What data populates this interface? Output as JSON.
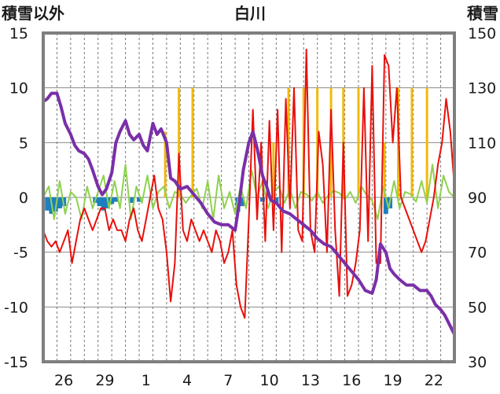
{
  "chart_data": {
    "type": "line",
    "title": "白川",
    "left_axis_label": "積雪以外",
    "right_axis_label": "積雪",
    "left_ylim": [
      -15,
      15
    ],
    "left_ticks": [
      15,
      10,
      5,
      0,
      -5,
      -10,
      -15
    ],
    "right_ylim": [
      30,
      150
    ],
    "right_ticks": [
      150,
      130,
      110,
      90,
      70,
      50,
      30
    ],
    "x_ticks": [
      "26",
      "29",
      "1",
      "4",
      "7",
      "10",
      "13",
      "16",
      "19",
      "22"
    ],
    "x_tick_positions": [
      1.5,
      4.5,
      7.5,
      10.5,
      13.5,
      16.5,
      19.5,
      22.5,
      25.5,
      28.5
    ],
    "x_range": [
      0,
      30
    ],
    "grid": {
      "horizontal": true,
      "vertical_dashed": true
    },
    "colors": {
      "temperature": "#e8100c",
      "snow_depth": "#7a2fa8",
      "temp_change": "#8fd14f",
      "snowfall": "#f2b90c",
      "negative_bar": "#1d7fbf",
      "frame": "#7f7f7f"
    },
    "series": [
      {
        "key": "snow_depth",
        "axis": "right",
        "x": [
          0.0,
          0.3,
          0.6,
          1.0,
          1.3,
          1.6,
          2.0,
          2.3,
          2.6,
          3.0,
          3.3,
          3.6,
          4.0,
          4.3,
          4.6,
          5.0,
          5.3,
          5.6,
          6.0,
          6.3,
          6.6,
          7.0,
          7.3,
          7.6,
          8.0,
          8.3,
          8.6,
          9.0,
          9.3,
          9.6,
          10.0,
          10.5,
          11.0,
          11.5,
          12.0,
          12.5,
          13.0,
          13.5,
          14.0,
          14.3,
          14.6,
          15.0,
          15.3,
          15.6,
          16.0,
          16.3,
          16.6,
          17.0,
          17.5,
          18.0,
          18.5,
          19.0,
          19.5,
          20.0,
          20.5,
          21.0,
          21.5,
          22.0,
          22.5,
          23.0,
          23.5,
          24.0,
          24.3,
          24.6,
          25.0,
          25.3,
          25.6,
          26.0,
          26.5,
          27.0,
          27.5,
          28.0,
          28.3,
          28.6,
          29.0,
          29.3,
          29.6,
          30.0
        ],
        "values": [
          125,
          126,
          128,
          128,
          123,
          117,
          113,
          109,
          107,
          106,
          104,
          100,
          94,
          91,
          93,
          99,
          110,
          114,
          118,
          113,
          111,
          113,
          109,
          107,
          117,
          113,
          115,
          110,
          97,
          96,
          93,
          94,
          91,
          88,
          84,
          81,
          80,
          80,
          78,
          88,
          100,
          110,
          114,
          108,
          98,
          94,
          89,
          88,
          85,
          84,
          82,
          80,
          78,
          75,
          73,
          72,
          69,
          66,
          63,
          60,
          56,
          55,
          60,
          73,
          70,
          64,
          62,
          60,
          58,
          58,
          56,
          56,
          54,
          51,
          49,
          47,
          44,
          40
        ],
        "axis_note": "snow depth in cm, right axis"
      },
      {
        "key": "temperature",
        "axis": "left",
        "x": [
          0.0,
          0.3,
          0.6,
          0.9,
          1.2,
          1.5,
          1.8,
          2.1,
          2.4,
          2.7,
          3.0,
          3.3,
          3.6,
          3.9,
          4.2,
          4.5,
          4.8,
          5.1,
          5.4,
          5.7,
          6.0,
          6.3,
          6.6,
          6.9,
          7.2,
          7.5,
          7.8,
          8.1,
          8.4,
          8.7,
          9.0,
          9.3,
          9.6,
          9.9,
          10.2,
          10.5,
          10.8,
          11.1,
          11.4,
          11.7,
          12.0,
          12.3,
          12.6,
          12.9,
          13.2,
          13.5,
          13.8,
          14.1,
          14.4,
          14.7,
          15.0,
          15.3,
          15.6,
          15.9,
          16.2,
          16.5,
          16.8,
          17.1,
          17.4,
          17.7,
          18.0,
          18.3,
          18.6,
          18.9,
          19.2,
          19.5,
          19.8,
          20.1,
          20.4,
          20.7,
          21.0,
          21.3,
          21.6,
          21.9,
          22.2,
          22.5,
          22.8,
          23.1,
          23.4,
          23.7,
          24.0,
          24.3,
          24.6,
          24.9,
          25.2,
          25.5,
          25.8,
          26.1,
          26.4,
          26.7,
          27.0,
          27.3,
          27.6,
          27.9,
          28.2,
          28.5,
          28.8,
          29.1,
          29.4,
          29.7,
          30.0
        ],
        "values": [
          -3,
          -4,
          -4.5,
          -4,
          -5,
          -4,
          -3,
          -6,
          -4,
          -2,
          -1,
          -2,
          -3,
          -2,
          -1,
          -1,
          -3,
          -2,
          -3,
          -3,
          -4,
          -2,
          -1,
          -3,
          -4,
          -2,
          0,
          2,
          -1,
          -2,
          -5,
          -9.5,
          -6,
          4,
          -3,
          -4,
          -2,
          -3,
          -4,
          -3,
          -4,
          -5,
          -3,
          -4,
          -6,
          -5,
          -3,
          -8,
          -10,
          -11,
          -2,
          8,
          -2,
          5,
          -4,
          7,
          -3,
          8,
          -5,
          9,
          -1,
          10,
          -3,
          -4,
          13.5,
          -3,
          -5,
          6,
          3,
          -5,
          8,
          -3,
          -9,
          5,
          -9,
          -8,
          -6,
          -3,
          10,
          -4,
          12,
          -6,
          -6,
          13,
          12,
          5,
          10,
          0,
          -1,
          -2,
          -3,
          -4,
          -5,
          -4,
          -2,
          0,
          3,
          5,
          9,
          6,
          1
        ]
      },
      {
        "key": "temp_change",
        "axis": "left",
        "x": [
          0.0,
          0.4,
          0.8,
          1.2,
          1.6,
          2.0,
          2.4,
          2.8,
          3.2,
          3.6,
          4.0,
          4.4,
          4.8,
          5.2,
          5.6,
          6.0,
          6.4,
          6.8,
          7.2,
          7.6,
          8.0,
          8.4,
          8.8,
          9.2,
          9.6,
          10.0,
          10.4,
          10.8,
          11.2,
          11.6,
          12.0,
          12.4,
          12.8,
          13.2,
          13.6,
          14.0,
          14.4,
          14.8,
          15.2,
          15.6,
          16.0,
          16.4,
          16.8,
          17.2,
          17.6,
          18.0,
          18.4,
          18.8,
          19.2,
          19.6,
          20.0,
          20.4,
          20.8,
          21.2,
          21.6,
          22.0,
          22.4,
          22.8,
          23.2,
          23.6,
          24.0,
          24.4,
          24.8,
          25.2,
          25.6,
          26.0,
          26.4,
          26.8,
          27.2,
          27.6,
          28.0,
          28.4,
          28.8,
          29.2,
          29.6,
          30.0
        ],
        "values": [
          0,
          1,
          -2,
          1.5,
          -1.5,
          0.5,
          0,
          -2,
          1,
          -1,
          0.5,
          2,
          -1,
          1.5,
          -1,
          3,
          -2,
          1,
          -0.5,
          2,
          -1,
          0.5,
          1,
          -1,
          0.5,
          0.3,
          -0.5,
          0.2,
          0.8,
          -1,
          1.5,
          -2,
          2,
          -1,
          0.5,
          -1.5,
          1,
          -1,
          2.5,
          0,
          1.5,
          -1,
          0.5,
          1,
          -0.5,
          0.8,
          -1,
          0.5,
          0.3,
          -0.3,
          0.5,
          -0.5,
          0.2,
          0.6,
          0.4,
          -0.2,
          0.5,
          -0.5,
          1,
          0.2,
          -0.3,
          -2,
          1,
          -1,
          1.5,
          -1,
          0.5,
          0.3,
          -0.4,
          1.5,
          -0.5,
          3,
          -1,
          2,
          0.5,
          0
        ]
      },
      {
        "key": "snowfall_bars",
        "axis": "left",
        "x": [
          8.9,
          9.9,
          10.9,
          16.8,
          17.9,
          19.0,
          20.0,
          21.0,
          21.9,
          23.0,
          24.9,
          25.9,
          26.9,
          28.0
        ],
        "values": [
          6,
          10,
          10,
          5,
          10,
          10,
          10,
          10,
          10,
          10,
          5,
          10,
          10,
          10
        ]
      },
      {
        "key": "negative_bars",
        "axis": "left",
        "x": [
          0.3,
          0.6,
          0.9,
          1.2,
          1.5,
          3.8,
          4.1,
          4.4,
          4.7,
          5.0,
          5.3,
          6.5,
          7.0,
          14.2,
          14.5,
          16.0,
          17.0,
          25.0,
          25.3
        ],
        "values": [
          -1.2,
          -1.5,
          -1.3,
          -1,
          -0.8,
          -0.5,
          -0.8,
          -1.2,
          -1,
          -0.6,
          -0.4,
          -0.5,
          -0.4,
          -1.3,
          -0.8,
          -0.4,
          -0.5,
          -1.5,
          -1
        ]
      }
    ]
  }
}
